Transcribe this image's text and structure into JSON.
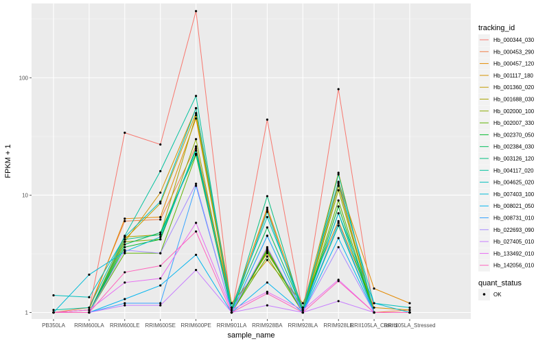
{
  "chart_data": {
    "type": "line",
    "xlabel": "sample_name",
    "ylabel": "FPKM + 1",
    "y_scale": "log10",
    "ylim": [
      0.88,
      430
    ],
    "y_ticks": [
      1,
      10,
      100
    ],
    "y_tick_labels": [
      "1",
      "10",
      "100"
    ],
    "grid": true,
    "legend_position": "right",
    "categories": [
      "PB350LA",
      "RRIM600LA",
      "RRIM600LE",
      "RRIM600SE",
      "RRIM600PE",
      "RRIM901LA",
      "RRIM928BA",
      "RRIM928LA",
      "RRIM928LE",
      "RRII105LA_Control",
      "RRII105LA_Stressed"
    ],
    "legend_title": "tracking_id",
    "shape_legend_title": "quant_status",
    "shape_legend_items": [
      "OK"
    ],
    "series": [
      {
        "name": "Hb_000344_030",
        "color": "#F8766D",
        "values": [
          1.0,
          1.05,
          34.0,
          27.0,
          370.0,
          1.0,
          44.0,
          1.0,
          80.0,
          1.0,
          1.0
        ]
      },
      {
        "name": "Hb_000453_290",
        "color": "#EF7F49",
        "values": [
          1.0,
          1.1,
          6.0,
          6.2,
          26.0,
          1.1,
          7.5,
          1.1,
          12.5,
          1.0,
          1.05
        ]
      },
      {
        "name": "Hb_000457_120",
        "color": "#E38900",
        "values": [
          1.0,
          1.05,
          6.3,
          6.5,
          45.0,
          1.05,
          7.8,
          1.05,
          13.0,
          1.6,
          1.2
        ]
      },
      {
        "name": "Hb_001117_180",
        "color": "#D39200",
        "values": [
          1.0,
          1.0,
          4.0,
          10.5,
          55.0,
          1.2,
          2.8,
          1.2,
          6.0,
          1.1,
          1.05
        ]
      },
      {
        "name": "Hb_001360_020",
        "color": "#C09B00",
        "values": [
          1.0,
          1.0,
          4.2,
          8.5,
          50.0,
          1.1,
          3.2,
          1.1,
          15.5,
          1.0,
          1.0
        ]
      },
      {
        "name": "Hb_001688_030",
        "color": "#A8A300",
        "values": [
          1.0,
          1.0,
          4.4,
          4.6,
          48.0,
          1.0,
          3.5,
          1.0,
          12.0,
          1.0,
          1.0
        ]
      },
      {
        "name": "Hb_002000_100",
        "color": "#8AAB00",
        "values": [
          1.0,
          1.0,
          4.0,
          4.2,
          30.0,
          1.0,
          3.3,
          1.0,
          11.0,
          1.0,
          1.0
        ]
      },
      {
        "name": "Hb_002007_330",
        "color": "#5DB200",
        "values": [
          1.0,
          1.0,
          3.2,
          3.2,
          22.0,
          1.0,
          3.0,
          1.0,
          9.0,
          1.0,
          1.0
        ]
      },
      {
        "name": "Hb_002370_050",
        "color": "#00B82B",
        "values": [
          1.0,
          1.0,
          3.6,
          4.2,
          25.0,
          1.0,
          3.4,
          1.0,
          8.0,
          1.0,
          1.0
        ]
      },
      {
        "name": "Hb_002384_030",
        "color": "#00BC59",
        "values": [
          1.0,
          1.0,
          3.8,
          4.8,
          22.5,
          1.05,
          5.3,
          1.05,
          7.0,
          1.0,
          1.0
        ]
      },
      {
        "name": "Hb_003126_120",
        "color": "#00BF7D",
        "values": [
          1.0,
          1.0,
          4.2,
          4.6,
          24.0,
          1.0,
          9.8,
          1.0,
          5.5,
          1.0,
          1.0
        ]
      },
      {
        "name": "Hb_004117_020",
        "color": "#00C19E",
        "values": [
          1.05,
          1.1,
          4.5,
          16.0,
          70.0,
          1.0,
          7.2,
          1.0,
          15.0,
          1.0,
          1.0
        ]
      },
      {
        "name": "Hb_004625_020",
        "color": "#00BFBC",
        "values": [
          1.4,
          1.35,
          4.4,
          8.8,
          55.0,
          1.1,
          6.5,
          1.1,
          12.8,
          1.2,
          1.1
        ]
      },
      {
        "name": "Hb_007403_100",
        "color": "#00BBD6",
        "values": [
          1.0,
          2.1,
          3.3,
          4.4,
          24.0,
          1.0,
          4.5,
          1.0,
          7.0,
          1.2,
          1.0
        ]
      },
      {
        "name": "Hb_008021_050",
        "color": "#00B4EF",
        "values": [
          1.0,
          1.0,
          1.3,
          1.7,
          3.1,
          1.0,
          1.8,
          1.0,
          4.3,
          1.0,
          1.0
        ]
      },
      {
        "name": "Hb_008731_010",
        "color": "#35A2FF",
        "values": [
          1.0,
          1.0,
          1.2,
          1.2,
          12.0,
          1.0,
          4.5,
          1.0,
          5.8,
          1.0,
          1.0
        ]
      },
      {
        "name": "Hb_022693_090",
        "color": "#A58AFF",
        "values": [
          1.0,
          1.0,
          3.4,
          3.2,
          12.5,
          1.0,
          3.6,
          1.0,
          3.6,
          1.0,
          1.0
        ]
      },
      {
        "name": "Hb_027405_010",
        "color": "#C77CFF",
        "values": [
          1.0,
          1.0,
          1.15,
          1.15,
          2.3,
          1.0,
          1.15,
          1.0,
          1.25,
          1.0,
          1.0
        ]
      },
      {
        "name": "Hb_133492_010",
        "color": "#E76BF3",
        "values": [
          1.0,
          1.05,
          1.8,
          1.95,
          5.8,
          1.05,
          1.5,
          1.05,
          1.9,
          1.0,
          1.0
        ]
      },
      {
        "name": "Hb_142056_010",
        "color": "#FF62BC",
        "values": [
          1.0,
          1.0,
          2.2,
          2.5,
          4.9,
          1.0,
          1.45,
          1.0,
          1.85,
          1.0,
          1.0
        ]
      }
    ]
  }
}
